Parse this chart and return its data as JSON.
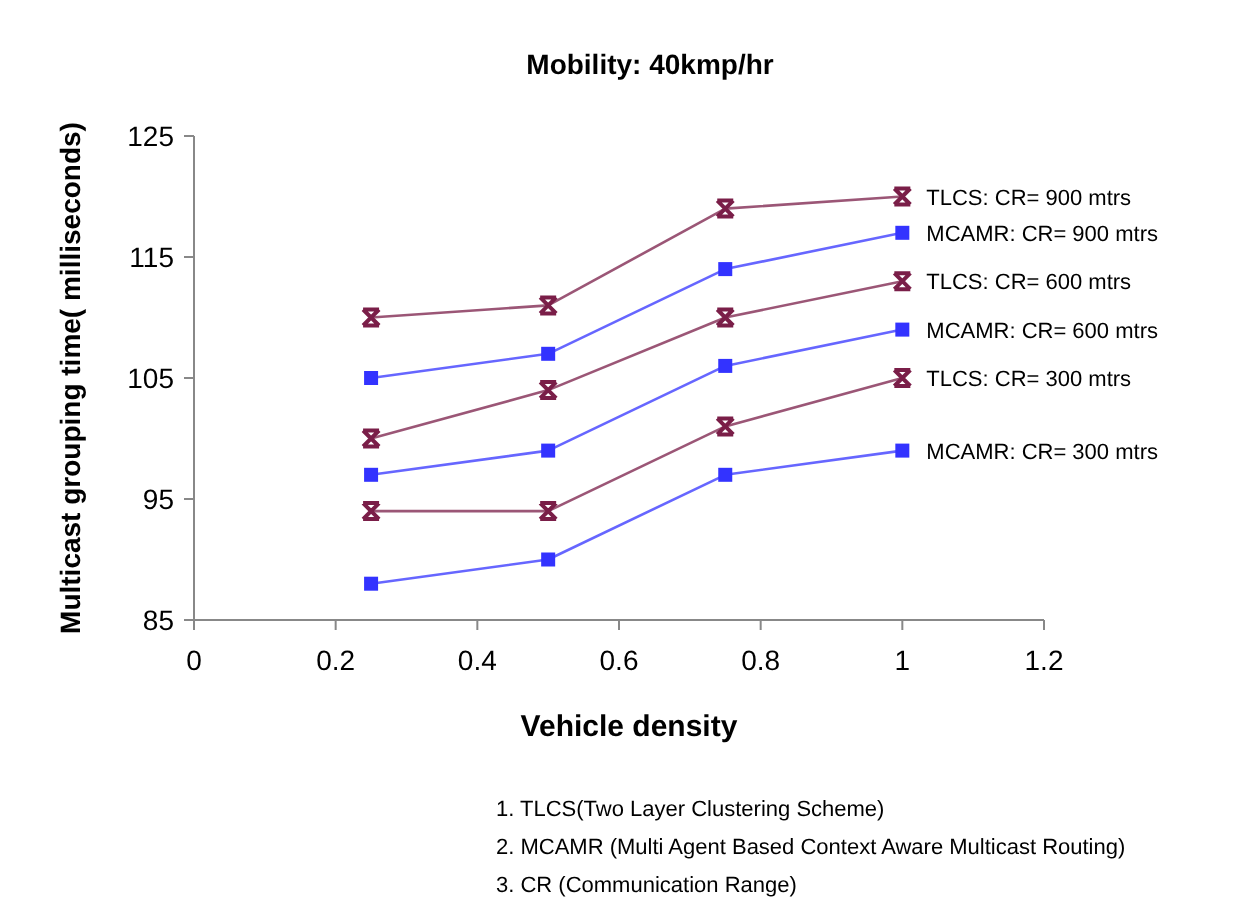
{
  "chart_data": {
    "type": "line",
    "title": "Mobility: 40kmp/hr",
    "xlabel": "Vehicle density",
    "ylabel": "Multicast grouping time( milliseconds)",
    "x": [
      0.25,
      0.5,
      0.75,
      1
    ],
    "series": [
      {
        "name": "TLCS: CR= 900 mtrs",
        "color": "#7a1e48",
        "marker": "cross",
        "values": [
          110,
          111,
          119,
          120
        ]
      },
      {
        "name": "MCAMR: CR= 900 mtrs",
        "color": "#3333ff",
        "marker": "square",
        "values": [
          105,
          107,
          114,
          117
        ]
      },
      {
        "name": "TLCS: CR= 600 mtrs",
        "color": "#7a1e48",
        "marker": "cross",
        "values": [
          100,
          104,
          110,
          113
        ]
      },
      {
        "name": "MCAMR: CR= 600 mtrs",
        "color": "#3333ff",
        "marker": "square",
        "values": [
          97,
          99,
          106,
          109
        ]
      },
      {
        "name": "TLCS: CR= 300 mtrs",
        "color": "#7a1e48",
        "marker": "cross",
        "values": [
          94,
          94,
          101,
          105
        ]
      },
      {
        "name": "MCAMR: CR= 300 mtrs",
        "color": "#3333ff",
        "marker": "square",
        "values": [
          88,
          90,
          97,
          99
        ]
      }
    ],
    "xlim": [
      0,
      1.2
    ],
    "xticks": [
      0,
      0.2,
      0.4,
      0.6,
      0.8,
      1,
      1.2
    ],
    "ylim": [
      85,
      125
    ],
    "yticks": [
      85,
      95,
      105,
      115,
      125
    ],
    "grid": false,
    "annotations": [
      "1. TLCS(Two Layer Clustering Scheme)",
      "2. MCAMR (Multi Agent Based Context Aware Multicast Routing)",
      "3. CR (Communication Range)"
    ]
  }
}
